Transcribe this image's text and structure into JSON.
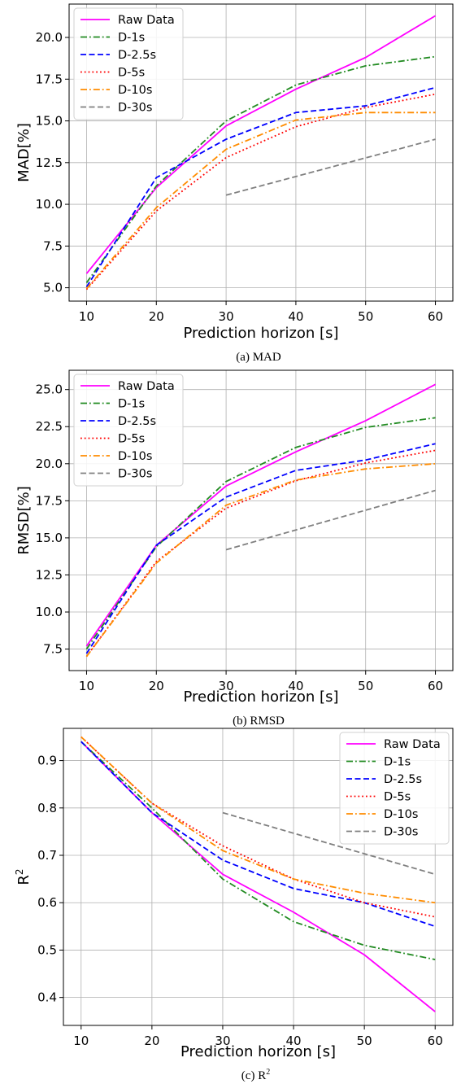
{
  "chart_data": [
    {
      "type": "line",
      "caption": "(a) MAD",
      "xlabel": "Prediction horizon [s]",
      "ylabel": "MAD[%]",
      "ylabel_sup": "",
      "xlim": [
        7.5,
        62.5
      ],
      "ylim": [
        4.2,
        22.0
      ],
      "xticks": [
        10,
        20,
        30,
        40,
        50,
        60
      ],
      "xtick_labels": [
        "10",
        "20",
        "30",
        "40",
        "50",
        "60"
      ],
      "yticks": [
        5.0,
        7.5,
        10.0,
        12.5,
        15.0,
        17.5,
        20.0
      ],
      "ytick_labels": [
        "5.0",
        "7.5",
        "10.0",
        "12.5",
        "15.0",
        "17.5",
        "20.0"
      ],
      "grid": true,
      "legend_position": "upper-left",
      "series": [
        {
          "name": "Raw Data",
          "color": "#ff00ff",
          "dash": "solid",
          "x": [
            10,
            20,
            30,
            40,
            50,
            60
          ],
          "values": [
            5.85,
            11.0,
            14.7,
            16.9,
            18.8,
            21.3
          ]
        },
        {
          "name": "D-1s",
          "color": "#228b22",
          "dash": "dashdot",
          "x": [
            10,
            20,
            30,
            40,
            50,
            60
          ],
          "values": [
            5.3,
            11.1,
            15.0,
            17.15,
            18.3,
            18.85
          ]
        },
        {
          "name": "D-2.5s",
          "color": "#0000ff",
          "dash": "dashed",
          "x": [
            10,
            20,
            30,
            40,
            50,
            60
          ],
          "values": [
            5.05,
            11.6,
            13.9,
            15.5,
            15.9,
            17.0
          ]
        },
        {
          "name": "D-5s",
          "color": "#ff0000",
          "dash": "dotted",
          "x": [
            10,
            20,
            30,
            40,
            50,
            60
          ],
          "values": [
            4.9,
            9.6,
            12.8,
            14.65,
            15.8,
            16.6
          ]
        },
        {
          "name": "D-10s",
          "color": "#ff8c00",
          "dash": "dashdot",
          "x": [
            10,
            20,
            30,
            40,
            50,
            60
          ],
          "values": [
            4.95,
            9.8,
            13.3,
            15.05,
            15.5,
            15.5
          ]
        },
        {
          "name": "D-30s",
          "color": "#808080",
          "dash": "dashed",
          "x": [
            30,
            60
          ],
          "values": [
            10.55,
            13.9
          ]
        }
      ]
    },
    {
      "type": "line",
      "caption": "(b) RMSD",
      "xlabel": "Prediction horizon [s]",
      "ylabel": "RMSD[%]",
      "ylabel_sup": "",
      "xlim": [
        7.5,
        62.5
      ],
      "ylim": [
        6.05,
        26.3
      ],
      "xticks": [
        10,
        20,
        30,
        40,
        50,
        60
      ],
      "xtick_labels": [
        "10",
        "20",
        "30",
        "40",
        "50",
        "60"
      ],
      "yticks": [
        7.5,
        10.0,
        12.5,
        15.0,
        17.5,
        20.0,
        22.5,
        25.0
      ],
      "ytick_labels": [
        "7.5",
        "10.0",
        "12.5",
        "15.0",
        "17.5",
        "20.0",
        "22.5",
        "25.0"
      ],
      "grid": true,
      "legend_position": "upper-left",
      "series": [
        {
          "name": "Raw Data",
          "color": "#ff00ff",
          "dash": "solid",
          "x": [
            10,
            20,
            30,
            40,
            50,
            60
          ],
          "values": [
            7.7,
            14.5,
            18.5,
            20.8,
            22.9,
            25.35
          ]
        },
        {
          "name": "D-1s",
          "color": "#228b22",
          "dash": "dashdot",
          "x": [
            10,
            20,
            30,
            40,
            50,
            60
          ],
          "values": [
            7.5,
            14.4,
            18.8,
            21.1,
            22.45,
            23.1
          ]
        },
        {
          "name": "D-2.5s",
          "color": "#0000ff",
          "dash": "dashed",
          "x": [
            10,
            20,
            30,
            40,
            50,
            60
          ],
          "values": [
            7.2,
            14.5,
            17.75,
            19.55,
            20.25,
            21.35
          ]
        },
        {
          "name": "D-5s",
          "color": "#ff0000",
          "dash": "dotted",
          "x": [
            10,
            20,
            30,
            40,
            50,
            60
          ],
          "values": [
            7.0,
            13.4,
            17.0,
            18.85,
            20.05,
            20.9
          ]
        },
        {
          "name": "D-10s",
          "color": "#ff8c00",
          "dash": "dashdot",
          "x": [
            10,
            20,
            30,
            40,
            50,
            60
          ],
          "values": [
            7.0,
            13.3,
            17.2,
            18.9,
            19.65,
            20.0
          ]
        },
        {
          "name": "D-30s",
          "color": "#808080",
          "dash": "dashed",
          "x": [
            30,
            60
          ],
          "values": [
            14.2,
            18.2
          ]
        }
      ]
    },
    {
      "type": "line",
      "caption": "(c) R",
      "caption_sup": "2",
      "xlabel": "Prediction horizon [s]",
      "ylabel": "R",
      "ylabel_sup": "2",
      "xlim": [
        7.5,
        62.5
      ],
      "ylim": [
        0.341,
        0.968
      ],
      "xticks": [
        10,
        20,
        30,
        40,
        50,
        60
      ],
      "xtick_labels": [
        "10",
        "20",
        "30",
        "40",
        "50",
        "60"
      ],
      "yticks": [
        0.4,
        0.5,
        0.6,
        0.7,
        0.8,
        0.9
      ],
      "ytick_labels": [
        "0.4",
        "0.5",
        "0.6",
        "0.7",
        "0.8",
        "0.9"
      ],
      "grid": true,
      "legend_position": "upper-right",
      "series": [
        {
          "name": "Raw Data",
          "color": "#ff00ff",
          "dash": "solid",
          "x": [
            10,
            20,
            30,
            40,
            50,
            60
          ],
          "values": [
            0.94,
            0.79,
            0.66,
            0.58,
            0.49,
            0.37
          ]
        },
        {
          "name": "D-1s",
          "color": "#228b22",
          "dash": "dashdot",
          "x": [
            10,
            20,
            30,
            40,
            50,
            60
          ],
          "values": [
            0.94,
            0.8,
            0.65,
            0.56,
            0.51,
            0.48
          ]
        },
        {
          "name": "D-2.5s",
          "color": "#0000ff",
          "dash": "dashed",
          "x": [
            10,
            20,
            30,
            40,
            50,
            60
          ],
          "values": [
            0.94,
            0.79,
            0.69,
            0.63,
            0.6,
            0.55
          ]
        },
        {
          "name": "D-5s",
          "color": "#ff0000",
          "dash": "dotted",
          "x": [
            10,
            20,
            30,
            40,
            50,
            60
          ],
          "values": [
            0.95,
            0.81,
            0.72,
            0.65,
            0.6,
            0.57
          ]
        },
        {
          "name": "D-10s",
          "color": "#ff8c00",
          "dash": "dashdot",
          "x": [
            10,
            20,
            30,
            40,
            50,
            60
          ],
          "values": [
            0.95,
            0.81,
            0.71,
            0.65,
            0.62,
            0.6
          ]
        },
        {
          "name": "D-30s",
          "color": "#808080",
          "dash": "dashed",
          "x": [
            30,
            60
          ],
          "values": [
            0.79,
            0.66
          ]
        }
      ]
    }
  ]
}
